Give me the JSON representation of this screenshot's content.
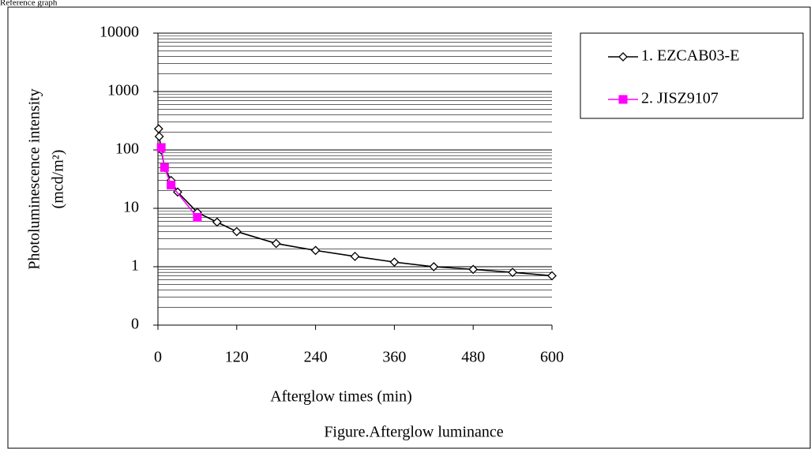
{
  "header": {
    "title": "Reference graph"
  },
  "chart_data": {
    "type": "line",
    "y_label": [
      "Photoluminescence intensity",
      "(mcd/m²)"
    ],
    "x_label": "Afterglow times (min)",
    "caption": "Figure.Afterglow luminance",
    "xlim": [
      0,
      600
    ],
    "xticks": [
      0,
      120,
      240,
      360,
      480,
      600
    ],
    "ylim": [
      0.1,
      10000
    ],
    "log_y": true,
    "grid": true,
    "yticks": [
      {
        "value": 0.1,
        "label": "0"
      },
      1,
      10,
      100,
      1000,
      10000
    ],
    "legend": "right",
    "series": [
      {
        "name": "1. EZCAB03-E",
        "color": "#000000",
        "marker": "diamond",
        "x": [
          1,
          2,
          5,
          10,
          20,
          30,
          60,
          90,
          120,
          180,
          240,
          300,
          360,
          420,
          480,
          540,
          600
        ],
        "values": [
          230,
          170,
          100,
          50,
          30,
          19,
          8.5,
          5.8,
          4,
          2.5,
          1.9,
          1.5,
          1.2,
          1.0,
          0.9,
          0.8,
          0.7
        ]
      },
      {
        "name": "2. JISZ9107",
        "color": "#ff00ff",
        "marker": "square",
        "x": [
          5,
          10,
          20,
          60
        ],
        "values": [
          110,
          50,
          25,
          7
        ]
      }
    ]
  }
}
